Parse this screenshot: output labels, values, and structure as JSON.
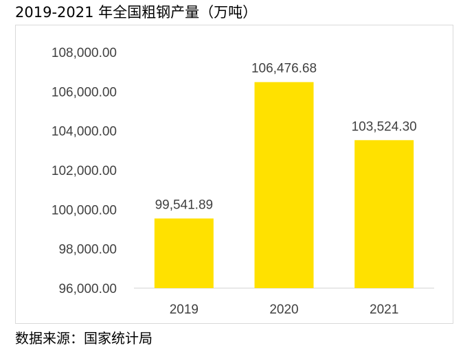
{
  "title": "2019-2021 年全国粗钢产量（万吨）",
  "source": "数据来源：国家统计局",
  "colors": {
    "bar": "#ffe100",
    "axis": "#d9d9d9",
    "text": "#404040"
  },
  "chart_data": {
    "type": "bar",
    "categories": [
      "2019",
      "2020",
      "2021"
    ],
    "values": [
      99541.89,
      106476.68,
      103524.3
    ],
    "data_labels": [
      "99,541.89",
      "106,476.68",
      "103,524.30"
    ],
    "ylim": [
      96000,
      108000
    ],
    "yticks": [
      96000,
      98000,
      100000,
      102000,
      104000,
      106000,
      108000
    ],
    "ytick_labels": [
      "96,000.00",
      "98,000.00",
      "100,000.00",
      "102,000.00",
      "104,000.00",
      "106,000.00",
      "108,000.00"
    ],
    "grid": false,
    "legend": "none"
  }
}
